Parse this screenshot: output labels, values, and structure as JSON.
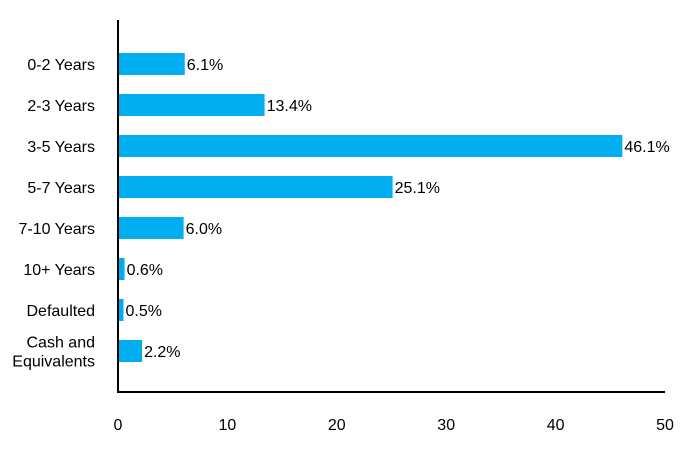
{
  "chart_data": {
    "type": "bar",
    "orientation": "horizontal",
    "categories": [
      "0-2 Years",
      "2-3 Years",
      "3-5 Years",
      "5-7 Years",
      "7-10 Years",
      "10+ Years",
      "Defaulted",
      "Cash and Equivalents"
    ],
    "category_lines": [
      [
        "0-2 Years"
      ],
      [
        "2-3 Years"
      ],
      [
        "3-5 Years"
      ],
      [
        "5-7 Years"
      ],
      [
        "7-10 Years"
      ],
      [
        "10+ Years"
      ],
      [
        "Defaulted"
      ],
      [
        "Cash and",
        "Equivalents"
      ]
    ],
    "values": [
      6.1,
      13.4,
      46.1,
      25.1,
      6.0,
      0.6,
      0.5,
      2.2
    ],
    "data_labels": [
      "6.1%",
      "13.4%",
      "46.1%",
      "25.1%",
      "6.0%",
      "0.6%",
      "0.5%",
      "2.2%"
    ],
    "x_ticks": [
      0,
      10,
      20,
      30,
      40,
      50
    ],
    "x_tick_labels": [
      "0",
      "10",
      "20",
      "30",
      "40",
      "50"
    ],
    "xlim": [
      0,
      50
    ],
    "grid": false,
    "legend": "none",
    "title": "",
    "xlabel": "",
    "ylabel": "",
    "colors": {
      "bar": "#00AEEF",
      "axis": "#000000",
      "text": "#000000"
    }
  }
}
